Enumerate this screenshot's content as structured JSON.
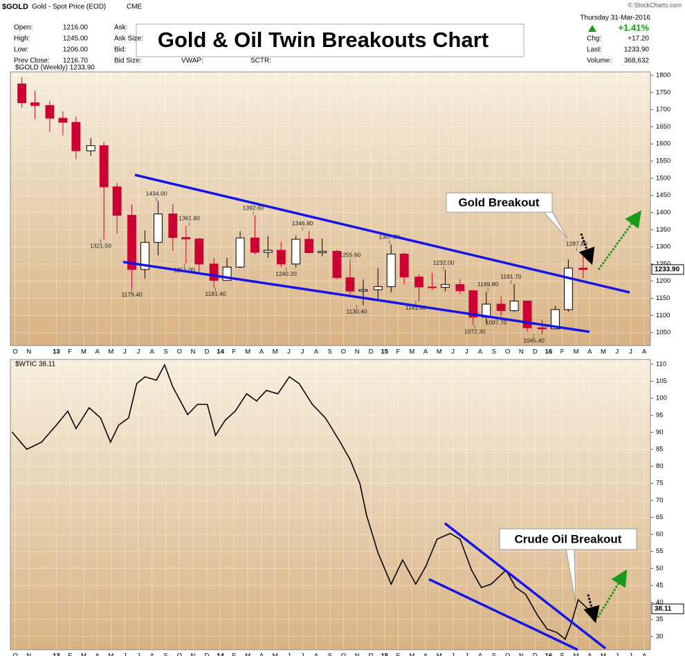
{
  "header": {
    "symbol": "$GOLD",
    "description": "Gold - Spot Price (EOD)",
    "exchange": "CME",
    "copyright": "© StockCharts.com",
    "date": "Thursday  31-Mar-2016",
    "change_pct": "+1.41%",
    "left_fields": [
      [
        "Open:",
        "1216.00"
      ],
      [
        "High:",
        "1245.00"
      ],
      [
        "Low:",
        "1206.00"
      ],
      [
        "Prev Close:",
        "1216.70"
      ]
    ],
    "mid_fields": [
      "Ask:",
      "Ask Size:",
      "Bid:",
      "Bid Size:"
    ],
    "extra_fields": [
      "VWAP:",
      "SCTR:"
    ],
    "right_fields": [
      [
        "Chg:",
        "+17.20"
      ],
      [
        "Last:",
        "1233.90"
      ],
      [
        "Volume:",
        "368,632"
      ]
    ]
  },
  "chart_data": [
    {
      "type": "candlestick",
      "title": "Gold & Oil Twin Breakouts Chart",
      "legend": "$GOLD (Weekly) 1233.90",
      "callout": "Gold Breakout",
      "x": [
        2012.79,
        2012.87,
        2012.96,
        2013.04,
        2013.12,
        2013.21,
        2013.29,
        2013.37,
        2013.46,
        2013.54,
        2013.62,
        2013.71,
        2013.79,
        2013.87,
        2013.96,
        2014.04,
        2014.12,
        2014.21,
        2014.29,
        2014.37,
        2014.46,
        2014.54,
        2014.62,
        2014.71,
        2014.79,
        2014.87,
        2014.96,
        2015.04,
        2015.12,
        2015.21,
        2015.29,
        2015.37,
        2015.46,
        2015.54,
        2015.62,
        2015.71,
        2015.79,
        2015.87,
        2015.96,
        2016.04,
        2016.12,
        2016.21
      ],
      "open": [
        1775,
        1720,
        1712,
        1675,
        1663,
        1580,
        1595,
        1475,
        1392,
        1234,
        1313,
        1396,
        1327,
        1323,
        1250,
        1202,
        1241,
        1326,
        1284,
        1290,
        1250,
        1322,
        1283,
        1287,
        1210,
        1171,
        1175,
        1184,
        1279,
        1212,
        1183,
        1182,
        1190,
        1172,
        1095,
        1133,
        1114,
        1142,
        1064,
        1061,
        1117,
        1238
      ],
      "high": [
        1795,
        1755,
        1725,
        1695,
        1680,
        1617,
        1605,
        1487,
        1424,
        1348,
        1434,
        1424,
        1361,
        1326,
        1267,
        1268,
        1345,
        1392,
        1331,
        1315,
        1332,
        1346,
        1324,
        1292,
        1255,
        1205,
        1238,
        1307,
        1284,
        1219,
        1224,
        1232,
        1205,
        1174,
        1169,
        1156,
        1191,
        1143,
        1088,
        1128,
        1263,
        1287
      ],
      "low": [
        1705,
        1672,
        1635,
        1625,
        1555,
        1565,
        1321,
        1338,
        1179,
        1207,
        1275,
        1288,
        1251,
        1226,
        1181,
        1202,
        1238,
        1278,
        1268,
        1240,
        1240,
        1281,
        1273,
        1206,
        1161,
        1130,
        1142,
        1167,
        1191,
        1141,
        1175,
        1170,
        1162,
        1072,
        1077,
        1097,
        1110,
        1052,
        1045,
        1061,
        1111,
        1208
      ],
      "close": [
        1720,
        1712,
        1675,
        1663,
        1580,
        1595,
        1475,
        1392,
        1234,
        1313,
        1396,
        1327,
        1323,
        1250,
        1202,
        1241,
        1326,
        1284,
        1290,
        1250,
        1322,
        1283,
        1287,
        1210,
        1171,
        1175,
        1184,
        1279,
        1212,
        1183,
        1182,
        1190,
        1172,
        1095,
        1133,
        1114,
        1142,
        1064,
        1061,
        1117,
        1238,
        1233.9
      ],
      "up_color": "#000000",
      "down_color": "#cc0033",
      "grid": true,
      "xlim": [
        2012.72,
        2016.62
      ],
      "ylim": [
        1012,
        1810
      ],
      "yticks": [
        1050,
        1100,
        1150,
        1200,
        1250,
        1300,
        1350,
        1400,
        1450,
        1500,
        1550,
        1600,
        1650,
        1700,
        1750,
        1800
      ],
      "xticks": [
        {
          "value": 2012.75,
          "label": "O"
        },
        {
          "value": 2012.833,
          "label": "N"
        },
        {
          "value": 2013,
          "label": "13"
        },
        {
          "value": 2013.083,
          "label": "F"
        },
        {
          "value": 2013.167,
          "label": "M"
        },
        {
          "value": 2013.25,
          "label": "A"
        },
        {
          "value": 2013.333,
          "label": "M"
        },
        {
          "value": 2013.417,
          "label": "J"
        },
        {
          "value": 2013.5,
          "label": "J"
        },
        {
          "value": 2013.583,
          "label": "A"
        },
        {
          "value": 2013.667,
          "label": "S"
        },
        {
          "value": 2013.75,
          "label": "O"
        },
        {
          "value": 2013.833,
          "label": "N"
        },
        {
          "value": 2013.917,
          "label": "D"
        },
        {
          "value": 2014,
          "label": "14"
        },
        {
          "value": 2014.083,
          "label": "F"
        },
        {
          "value": 2014.167,
          "label": "M"
        },
        {
          "value": 2014.25,
          "label": "A"
        },
        {
          "value": 2014.333,
          "label": "M"
        },
        {
          "value": 2014.417,
          "label": "J"
        },
        {
          "value": 2014.5,
          "label": "J"
        },
        {
          "value": 2014.583,
          "label": "A"
        },
        {
          "value": 2014.667,
          "label": "S"
        },
        {
          "value": 2014.75,
          "label": "O"
        },
        {
          "value": 2014.833,
          "label": "N"
        },
        {
          "value": 2014.917,
          "label": "D"
        },
        {
          "value": 2015,
          "label": "15"
        },
        {
          "value": 2015.083,
          "label": "F"
        },
        {
          "value": 2015.167,
          "label": "M"
        },
        {
          "value": 2015.25,
          "label": "A"
        },
        {
          "value": 2015.333,
          "label": "M"
        },
        {
          "value": 2015.417,
          "label": "J"
        },
        {
          "value": 2015.5,
          "label": "J"
        },
        {
          "value": 2015.583,
          "label": "A"
        },
        {
          "value": 2015.667,
          "label": "S"
        },
        {
          "value": 2015.75,
          "label": "O"
        },
        {
          "value": 2015.833,
          "label": "N"
        },
        {
          "value": 2015.917,
          "label": "D"
        },
        {
          "value": 2016,
          "label": "16"
        },
        {
          "value": 2016.083,
          "label": "F"
        },
        {
          "value": 2016.167,
          "label": "M"
        },
        {
          "value": 2016.25,
          "label": "A"
        },
        {
          "value": 2016.333,
          "label": "M"
        },
        {
          "value": 2016.417,
          "label": "J"
        },
        {
          "value": 2016.5,
          "label": "J"
        },
        {
          "value": 2016.583,
          "label": "A"
        }
      ],
      "annotations": [
        {
          "x": 2013.61,
          "value": 1434,
          "label": "1434.00"
        },
        {
          "x": 2014.2,
          "value": 1392.6,
          "label": "1392.60"
        },
        {
          "x": 2013.81,
          "value": 1361.8,
          "label": "1361.80"
        },
        {
          "x": 2014.5,
          "value": 1346.8,
          "label": "1346.80"
        },
        {
          "x": 2013.27,
          "value": 1321.5,
          "label": "1321.50"
        },
        {
          "x": 2015.03,
          "value": 1307.8,
          "label": "1307.80"
        },
        {
          "x": 2016.17,
          "value": 1287.8,
          "label": "1287.80"
        },
        {
          "x": 2014.79,
          "value": 1255.6,
          "label": "1255.60"
        },
        {
          "x": 2013.78,
          "value": 1251,
          "label": "1251.00"
        },
        {
          "x": 2014.4,
          "value": 1240.2,
          "label": "1240.20"
        },
        {
          "x": 2015.36,
          "value": 1232,
          "label": "1232.00"
        },
        {
          "x": 2015.77,
          "value": 1191.7,
          "label": "1191.70"
        },
        {
          "x": 2013.97,
          "value": 1181.4,
          "label": "1181.40"
        },
        {
          "x": 2013.46,
          "value": 1179.4,
          "label": "1179.40"
        },
        {
          "x": 2015.63,
          "value": 1169.8,
          "label": "1169.80"
        },
        {
          "x": 2015.19,
          "value": 1141.6,
          "label": "1141.60"
        },
        {
          "x": 2014.83,
          "value": 1130.4,
          "label": "1130.40"
        },
        {
          "x": 2015.68,
          "value": 1097.7,
          "label": "1097.70"
        },
        {
          "x": 2015.55,
          "value": 1072.3,
          "label": "1072.30"
        },
        {
          "x": 2015.91,
          "value": 1045.4,
          "label": "1045.40"
        }
      ],
      "last": {
        "value": 1233.9,
        "label": "1233.90"
      }
    },
    {
      "type": "line",
      "legend": "$WTIC 38.11",
      "callout": "Crude Oil Breakout",
      "color": "#000000",
      "grid": true,
      "x": [
        2012.73,
        2012.82,
        2012.91,
        2013.0,
        2013.07,
        2013.12,
        2013.2,
        2013.27,
        2013.33,
        2013.38,
        2013.44,
        2013.49,
        2013.54,
        2013.61,
        2013.66,
        2013.71,
        2013.8,
        2013.86,
        2013.92,
        2013.97,
        2014.03,
        2014.09,
        2014.16,
        2014.22,
        2014.28,
        2014.35,
        2014.42,
        2014.48,
        2014.56,
        2014.64,
        2014.73,
        2014.79,
        2014.85,
        2014.89,
        2014.96,
        2015.04,
        2015.11,
        2015.19,
        2015.25,
        2015.32,
        2015.4,
        2015.46,
        2015.53,
        2015.59,
        2015.65,
        2015.74,
        2015.8,
        2015.86,
        2015.93,
        2015.99,
        2016.05,
        2016.1,
        2016.14,
        2016.18,
        2016.24
      ],
      "values": [
        90.1,
        85.0,
        87.1,
        92.1,
        96.2,
        91.1,
        97.2,
        94.2,
        87.1,
        92.1,
        94.2,
        104.3,
        106.3,
        105.3,
        109.8,
        103.3,
        95.2,
        98.2,
        98.2,
        89.1,
        93.6,
        96.2,
        101.3,
        99.2,
        102.3,
        101.3,
        106.3,
        104.3,
        98.2,
        94.2,
        87.1,
        82.0,
        74.9,
        65.7,
        54.6,
        45.4,
        52.5,
        45.4,
        50.5,
        58.6,
        60.3,
        58.6,
        49.5,
        44.4,
        45.4,
        49.5,
        44.4,
        42.4,
        36.4,
        32.2,
        31.2,
        29.2,
        34.2,
        40.8,
        38.11
      ],
      "xlim": [
        2012.72,
        2016.62
      ],
      "ylim": [
        26.1,
        111.4
      ],
      "yticks": [
        30,
        35,
        40,
        45,
        50,
        55,
        60,
        65,
        70,
        75,
        80,
        85,
        90,
        95,
        100,
        105,
        110
      ],
      "last": {
        "value": 38.11,
        "label": "38.11"
      }
    }
  ]
}
